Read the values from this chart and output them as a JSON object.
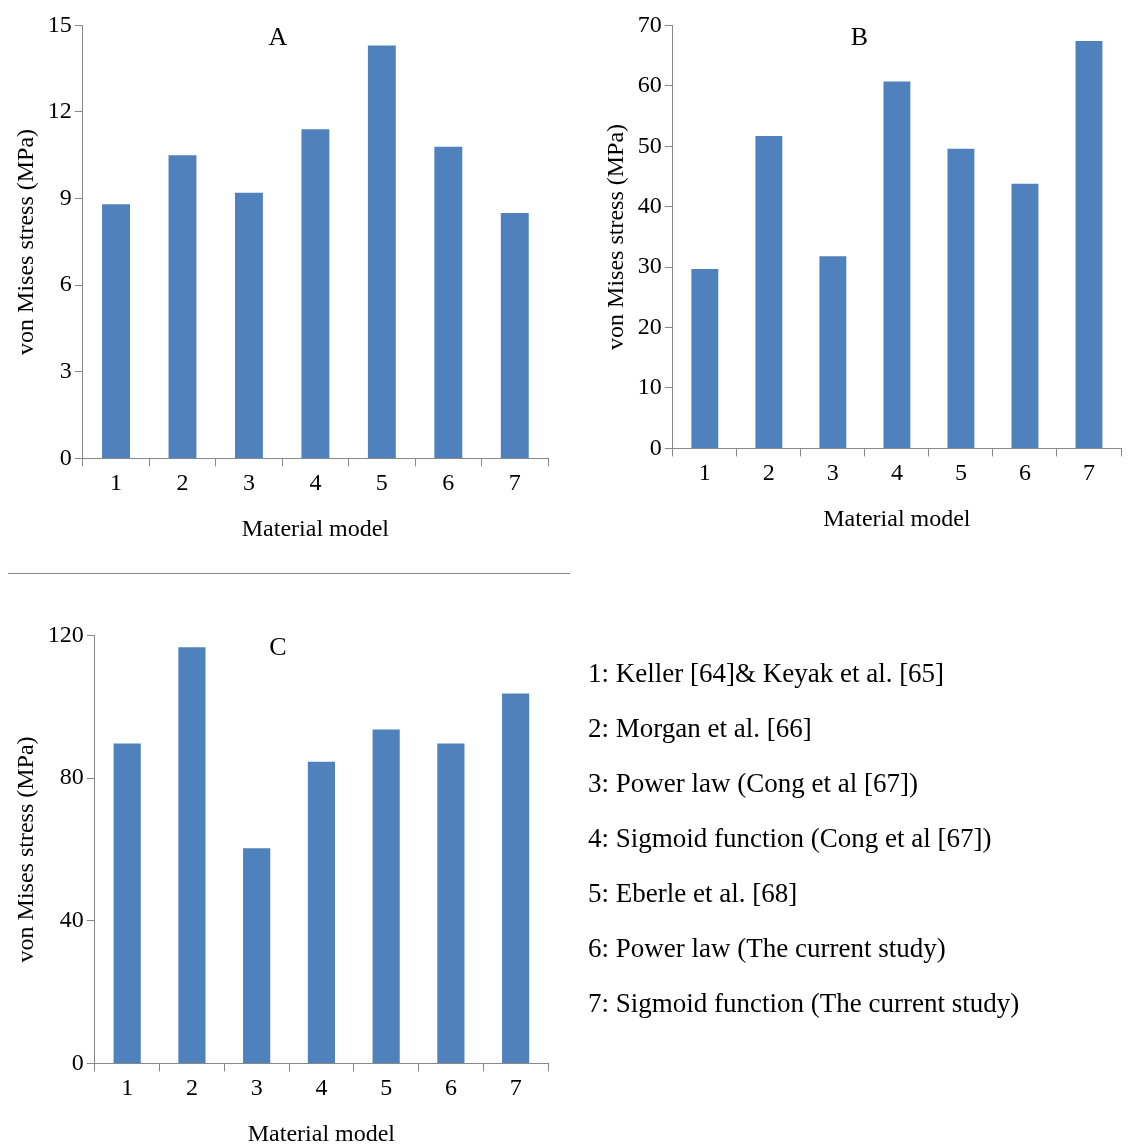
{
  "chart_data": [
    {
      "type": "bar",
      "title": "A",
      "xlabel": "Material model",
      "ylabel": "von Mises stress (MPa)",
      "categories": [
        "1",
        "2",
        "3",
        "4",
        "5",
        "6",
        "7"
      ],
      "values": [
        8.8,
        10.5,
        9.2,
        11.4,
        14.3,
        10.8,
        8.5
      ],
      "color": "#4f81bd",
      "ylim": [
        0,
        15
      ],
      "yticks": [
        0,
        3,
        6,
        9,
        12,
        15
      ],
      "grid": false,
      "legend": false
    },
    {
      "type": "bar",
      "title": "B",
      "xlabel": "Material model",
      "ylabel": "von Mises stress (MPa)",
      "categories": [
        "1",
        "2",
        "3",
        "4",
        "5",
        "6",
        "7"
      ],
      "values": [
        29.7,
        51.7,
        31.8,
        60.7,
        49.6,
        43.8,
        67.4
      ],
      "color": "#4f81bd",
      "ylim": [
        0,
        70
      ],
      "yticks": [
        0,
        10,
        20,
        30,
        40,
        50,
        60,
        70
      ],
      "grid": false,
      "legend": false
    },
    {
      "type": "bar",
      "title": "C",
      "xlabel": "Material model",
      "ylabel": "von Mises stress (MPa)",
      "categories": [
        "1",
        "2",
        "3",
        "4",
        "5",
        "6",
        "7"
      ],
      "values": [
        89.7,
        116.7,
        60.3,
        84.6,
        93.6,
        89.7,
        103.7
      ],
      "color": "#4f81bd",
      "ylim": [
        0,
        120
      ],
      "yticks": [
        0,
        40,
        80,
        120
      ],
      "grid": false,
      "legend": false
    },
    {
      "type": "other",
      "annotations": [
        "1: Keller [64]& Keyak et al. [65]",
        "2: Morgan et al. [66]",
        "3: Power law (Cong et al [67])",
        "4: Sigmoid function (Cong et al [67])",
        "5: Eberle et al. [68]",
        "6: Power law (The current study)",
        "7: Sigmoid function (The current study)"
      ]
    }
  ]
}
